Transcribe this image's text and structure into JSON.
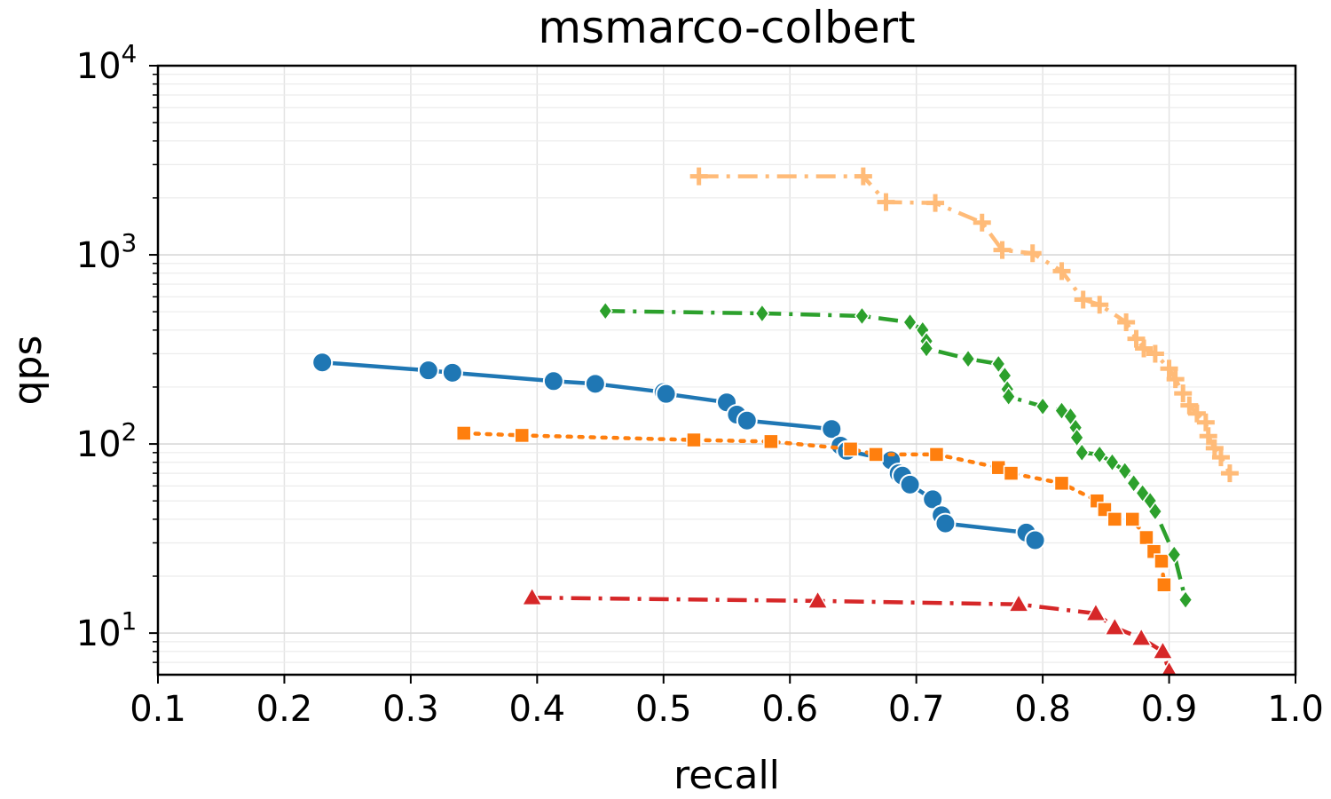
{
  "chart_data": {
    "type": "line",
    "title": "msmarco-colbert",
    "xlabel": "recall",
    "ylabel": "qps",
    "xlim": [
      0.1,
      1.0
    ],
    "ylim_log10": [
      0.78,
      4.0
    ],
    "yscale": "log",
    "grid": true,
    "x_ticks": [
      "0.1",
      "0.2",
      "0.3",
      "0.4",
      "0.5",
      "0.6",
      "0.7",
      "0.8",
      "0.9",
      "1.0"
    ],
    "y_ticks": [
      {
        "base": "10",
        "exp": "1",
        "value": 10
      },
      {
        "base": "10",
        "exp": "2",
        "value": 100
      },
      {
        "base": "10",
        "exp": "3",
        "value": 1000
      },
      {
        "base": "10",
        "exp": "4",
        "value": 10000
      }
    ],
    "series": [
      {
        "name": "series-blue-circle",
        "color": "#1f77b4",
        "marker": "circle",
        "linestyle": "solid",
        "points": [
          [
            0.23,
            270
          ],
          [
            0.314,
            245
          ],
          [
            0.333,
            238
          ],
          [
            0.413,
            215
          ],
          [
            0.446,
            208
          ],
          [
            0.5,
            188
          ],
          [
            0.502,
            184
          ],
          [
            0.55,
            166
          ],
          [
            0.558,
            143
          ],
          [
            0.566,
            133
          ],
          [
            0.633,
            120
          ],
          [
            0.64,
            98
          ],
          [
            0.645,
            92
          ],
          [
            0.68,
            82
          ],
          [
            0.686,
            70
          ],
          [
            0.689,
            68
          ],
          [
            0.695,
            61
          ],
          [
            0.713,
            51
          ],
          [
            0.72,
            42
          ],
          [
            0.723,
            38
          ],
          [
            0.787,
            34
          ],
          [
            0.794,
            31
          ]
        ]
      },
      {
        "name": "series-orange-square",
        "color": "#ff7f0e",
        "marker": "square",
        "linestyle": "dotted",
        "points": [
          [
            0.342,
            114
          ],
          [
            0.388,
            111
          ],
          [
            0.524,
            105
          ],
          [
            0.585,
            103
          ],
          [
            0.648,
            94
          ],
          [
            0.668,
            88
          ],
          [
            0.716,
            88
          ],
          [
            0.765,
            75
          ],
          [
            0.775,
            70
          ],
          [
            0.815,
            62
          ],
          [
            0.843,
            50
          ],
          [
            0.849,
            45
          ],
          [
            0.857,
            40
          ],
          [
            0.871,
            40
          ],
          [
            0.882,
            32
          ],
          [
            0.888,
            27
          ],
          [
            0.894,
            24
          ],
          [
            0.896,
            18
          ]
        ]
      },
      {
        "name": "series-green-diamond",
        "color": "#2ca02c",
        "marker": "diamond",
        "linestyle": "dashdot",
        "points": [
          [
            0.454,
            505
          ],
          [
            0.578,
            490
          ],
          [
            0.657,
            475
          ],
          [
            0.695,
            440
          ],
          [
            0.705,
            400
          ],
          [
            0.708,
            350
          ],
          [
            0.708,
            320
          ],
          [
            0.741,
            282
          ],
          [
            0.765,
            265
          ],
          [
            0.77,
            230
          ],
          [
            0.772,
            195
          ],
          [
            0.773,
            178
          ],
          [
            0.8,
            158
          ],
          [
            0.815,
            150
          ],
          [
            0.822,
            140
          ],
          [
            0.826,
            122
          ],
          [
            0.827,
            108
          ],
          [
            0.831,
            90
          ],
          [
            0.845,
            88
          ],
          [
            0.855,
            80
          ],
          [
            0.865,
            72
          ],
          [
            0.872,
            62
          ],
          [
            0.879,
            55
          ],
          [
            0.885,
            50
          ],
          [
            0.889,
            44
          ],
          [
            0.904,
            26
          ],
          [
            0.913,
            15
          ]
        ]
      },
      {
        "name": "series-red-triangle",
        "color": "#d62728",
        "marker": "triangle",
        "linestyle": "dashdot",
        "points": [
          [
            0.396,
            15.4
          ],
          [
            0.622,
            14.8
          ],
          [
            0.781,
            14.2
          ],
          [
            0.842,
            12.7
          ],
          [
            0.857,
            10.7
          ],
          [
            0.878,
            9.4
          ],
          [
            0.895,
            8.0
          ],
          [
            0.9,
            6.3
          ]
        ]
      },
      {
        "name": "series-peach-plus",
        "color": "#ffbb78",
        "marker": "plus",
        "linestyle": "dashdot",
        "points": [
          [
            0.528,
            2600
          ],
          [
            0.658,
            2600
          ],
          [
            0.676,
            1900
          ],
          [
            0.715,
            1880
          ],
          [
            0.752,
            1480
          ],
          [
            0.768,
            1060
          ],
          [
            0.792,
            1020
          ],
          [
            0.815,
            820
          ],
          [
            0.832,
            580
          ],
          [
            0.845,
            545
          ],
          [
            0.866,
            440
          ],
          [
            0.874,
            360
          ],
          [
            0.88,
            320
          ],
          [
            0.889,
            300
          ],
          [
            0.9,
            250
          ],
          [
            0.905,
            220
          ],
          [
            0.911,
            185
          ],
          [
            0.916,
            160
          ],
          [
            0.922,
            145
          ],
          [
            0.929,
            130
          ],
          [
            0.931,
            110
          ],
          [
            0.936,
            95
          ],
          [
            0.941,
            85
          ],
          [
            0.948,
            70
          ]
        ]
      }
    ]
  }
}
